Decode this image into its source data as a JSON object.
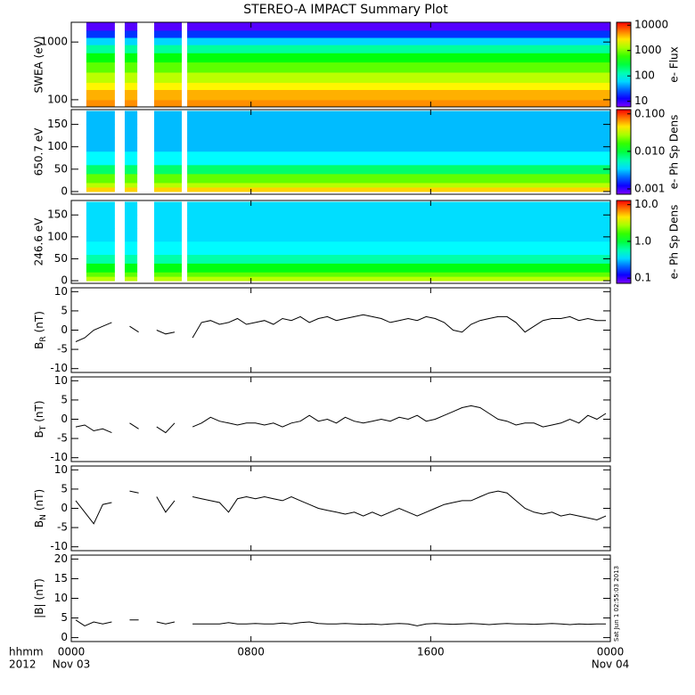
{
  "title": "STEREO-A IMPACT Summary Plot",
  "timestamp": "Sat Jun 1 02:55:03 2013",
  "xaxis": {
    "xlim": [
      0,
      24
    ],
    "xticks": [
      {
        "value": 0,
        "label": "0000"
      },
      {
        "value": 8,
        "label": "0800"
      },
      {
        "value": 16,
        "label": "1600"
      },
      {
        "value": 24,
        "label": "0000"
      }
    ],
    "date_labels": [
      {
        "value": 0,
        "label": "Nov 03"
      },
      {
        "value": 24,
        "label": "Nov 04"
      }
    ],
    "corner_labels": [
      "hhmm",
      "2012"
    ]
  },
  "chart_data": [
    {
      "type": "spectrogram",
      "ylabel": "SWEA (eV)",
      "ylog": true,
      "ylim": [
        75,
        2200
      ],
      "yticks": [
        100,
        1000
      ],
      "segments": [
        [
          0.67,
          1.94
        ],
        [
          2.38,
          2.94
        ],
        [
          3.69,
          4.92
        ],
        [
          5.16,
          24
        ]
      ],
      "y_edges": [
        75,
        100,
        150,
        200,
        300,
        450,
        650,
        900,
        1200,
        1600,
        2200
      ],
      "z": [
        5000,
        4000,
        2500,
        1500,
        800,
        400,
        150,
        60,
        20,
        8
      ],
      "zlabel": "e- Flux",
      "zlog": true,
      "zlim": [
        6,
        13000
      ],
      "zticks": [
        10,
        100,
        1000,
        10000
      ]
    },
    {
      "type": "spectrogram",
      "ylabel": "650.7 eV",
      "ylog": false,
      "ylim": [
        -6,
        183
      ],
      "yticks": [
        0,
        50,
        100,
        150
      ],
      "segments": [
        [
          0.67,
          1.94
        ],
        [
          2.38,
          2.94
        ],
        [
          3.69,
          4.92
        ],
        [
          5.16,
          24
        ]
      ],
      "y_edges": [
        0,
        10,
        20,
        40,
        60,
        90,
        120,
        150,
        180
      ],
      "z": [
        0.05,
        0.03,
        0.02,
        0.008,
        0.004,
        0.003,
        0.003,
        0.003
      ],
      "zlabel": "e- Ph Sp Dens",
      "zlog": true,
      "zlim": [
        0.00072,
        0.13
      ],
      "zticks": [
        {
          "value": 0.001,
          "label": "0.001"
        },
        {
          "value": 0.01,
          "label": "0.010"
        },
        {
          "value": 0.1,
          "label": "0.100"
        }
      ]
    },
    {
      "type": "spectrogram",
      "ylabel": "246.6 eV",
      "ylog": false,
      "ylim": [
        -6,
        183
      ],
      "yticks": [
        0,
        50,
        100,
        150
      ],
      "segments": [
        [
          0.67,
          1.94
        ],
        [
          2.38,
          2.94
        ],
        [
          3.69,
          4.92
        ],
        [
          5.16,
          24
        ]
      ],
      "y_edges": [
        0,
        10,
        20,
        40,
        60,
        90,
        120,
        150,
        180
      ],
      "z": [
        3,
        2,
        1.2,
        0.6,
        0.4,
        0.35,
        0.35,
        0.35
      ],
      "zlabel": "e- Ph Sp Dens",
      "zlog": true,
      "zlim": [
        0.072,
        13
      ],
      "zticks": [
        {
          "value": 0.1,
          "label": "0.1"
        },
        {
          "value": 1,
          "label": "1.0"
        },
        {
          "value": 10,
          "label": "10.0"
        }
      ]
    },
    {
      "type": "line",
      "ylabel": [
        "B",
        "R",
        "(nT)"
      ],
      "ylim": [
        -11,
        11
      ],
      "yticks": [
        -10,
        -5,
        0,
        5,
        10
      ],
      "color": "#000000",
      "x": [
        0.2,
        0.6,
        1.0,
        1.4,
        1.8,
        2.2,
        2.6,
        3.0,
        3.4,
        3.8,
        4.2,
        4.6,
        5.0,
        5.4,
        5.8,
        6.2,
        6.6,
        7.0,
        7.4,
        7.8,
        8.2,
        8.6,
        9.0,
        9.4,
        9.8,
        10.2,
        10.6,
        11.0,
        11.4,
        11.8,
        12.2,
        12.6,
        13.0,
        13.4,
        13.8,
        14.2,
        14.6,
        15.0,
        15.4,
        15.8,
        16.2,
        16.6,
        17.0,
        17.4,
        17.8,
        18.2,
        18.6,
        19.0,
        19.4,
        19.8,
        20.2,
        20.6,
        21.0,
        21.4,
        21.8,
        22.2,
        22.6,
        23.0,
        23.4,
        23.8
      ],
      "values": [
        -3,
        -2,
        0,
        1,
        2,
        null,
        1,
        -0.5,
        null,
        0,
        -1,
        -0.5,
        null,
        -2,
        2,
        2.5,
        1.5,
        2,
        3,
        1.5,
        2,
        2.5,
        1.5,
        3,
        2.5,
        3.5,
        2,
        3,
        3.5,
        2.5,
        3,
        3.5,
        4,
        3.5,
        3,
        2,
        2.5,
        3,
        2.5,
        3.5,
        3,
        2,
        0,
        -0.5,
        1.5,
        2.5,
        3,
        3.5,
        3.5,
        2,
        -0.5,
        1,
        2.5,
        3,
        3,
        3.5,
        2.5,
        3,
        2.5,
        2.5
      ]
    },
    {
      "type": "line",
      "ylabel": [
        "B",
        "T",
        "(nT)"
      ],
      "ylim": [
        -11,
        11
      ],
      "yticks": [
        -10,
        -5,
        0,
        5,
        10
      ],
      "color": "#000000",
      "x": [
        0.2,
        0.6,
        1.0,
        1.4,
        1.8,
        2.2,
        2.6,
        3.0,
        3.4,
        3.8,
        4.2,
        4.6,
        5.0,
        5.4,
        5.8,
        6.2,
        6.6,
        7.0,
        7.4,
        7.8,
        8.2,
        8.6,
        9.0,
        9.4,
        9.8,
        10.2,
        10.6,
        11.0,
        11.4,
        11.8,
        12.2,
        12.6,
        13.0,
        13.4,
        13.8,
        14.2,
        14.6,
        15.0,
        15.4,
        15.8,
        16.2,
        16.6,
        17.0,
        17.4,
        17.8,
        18.2,
        18.6,
        19.0,
        19.4,
        19.8,
        20.2,
        20.6,
        21.0,
        21.4,
        21.8,
        22.2,
        22.6,
        23.0,
        23.4,
        23.8
      ],
      "values": [
        -2,
        -1.5,
        -3,
        -2.5,
        -3.5,
        null,
        -1,
        -2.5,
        null,
        -2,
        -3.5,
        -1,
        null,
        -2,
        -1,
        0.5,
        -0.5,
        -1,
        -1.5,
        -1,
        -1,
        -1.5,
        -1,
        -2,
        -1,
        -0.5,
        1,
        -0.5,
        0,
        -1,
        0.5,
        -0.5,
        -1,
        -0.5,
        0,
        -0.5,
        0.5,
        0,
        1,
        -0.5,
        0,
        1,
        2,
        3,
        3.5,
        3,
        1.5,
        0,
        -0.5,
        -1.5,
        -1,
        -1,
        -2,
        -1.5,
        -1,
        0,
        -1,
        1,
        0,
        1.5
      ]
    },
    {
      "type": "line",
      "ylabel": [
        "B",
        "N",
        "(nT)"
      ],
      "ylim": [
        -11,
        11
      ],
      "yticks": [
        -10,
        -5,
        0,
        5,
        10
      ],
      "color": "#000000",
      "x": [
        0.2,
        0.6,
        1.0,
        1.4,
        1.8,
        2.2,
        2.6,
        3.0,
        3.4,
        3.8,
        4.2,
        4.6,
        5.0,
        5.4,
        5.8,
        6.2,
        6.6,
        7.0,
        7.4,
        7.8,
        8.2,
        8.6,
        9.0,
        9.4,
        9.8,
        10.2,
        10.6,
        11.0,
        11.4,
        11.8,
        12.2,
        12.6,
        13.0,
        13.4,
        13.8,
        14.2,
        14.6,
        15.0,
        15.4,
        15.8,
        16.2,
        16.6,
        17.0,
        17.4,
        17.8,
        18.2,
        18.6,
        19.0,
        19.4,
        19.8,
        20.2,
        20.6,
        21.0,
        21.4,
        21.8,
        22.2,
        22.6,
        23.0,
        23.4,
        23.8
      ],
      "values": [
        2,
        -1,
        -4,
        1,
        1.5,
        null,
        4.5,
        4,
        null,
        3,
        -1,
        2,
        null,
        3,
        2.5,
        2,
        1.5,
        -1,
        2.5,
        3,
        2.5,
        3,
        2.5,
        2,
        3,
        2,
        1,
        0,
        -0.5,
        -1,
        -1.5,
        -1,
        -2,
        -1,
        -2,
        -1,
        0,
        -1,
        -2,
        -1,
        0,
        1,
        1.5,
        2,
        2,
        3,
        4,
        4.5,
        4,
        2,
        0,
        -1,
        -1.5,
        -1,
        -2,
        -1.5,
        -2,
        -2.5,
        -3,
        -2
      ]
    },
    {
      "type": "line",
      "ylabel": [
        "|B|",
        "",
        "(nT)"
      ],
      "ylim": [
        -1,
        21
      ],
      "yticks": [
        0,
        5,
        10,
        15,
        20
      ],
      "color": "#000000",
      "x": [
        0.2,
        0.6,
        1.0,
        1.4,
        1.8,
        2.2,
        2.6,
        3.0,
        3.4,
        3.8,
        4.2,
        4.6,
        5.0,
        5.4,
        5.8,
        6.2,
        6.6,
        7.0,
        7.4,
        7.8,
        8.2,
        8.6,
        9.0,
        9.4,
        9.8,
        10.2,
        10.6,
        11.0,
        11.4,
        11.8,
        12.2,
        12.6,
        13.0,
        13.4,
        13.8,
        14.2,
        14.6,
        15.0,
        15.4,
        15.8,
        16.2,
        16.6,
        17.0,
        17.4,
        17.8,
        18.2,
        18.6,
        19.0,
        19.4,
        19.8,
        20.2,
        20.6,
        21.0,
        21.4,
        21.8,
        22.2,
        22.6,
        23.0,
        23.4,
        23.8
      ],
      "values": [
        4.5,
        3,
        4,
        3.5,
        4,
        null,
        4.5,
        4.5,
        null,
        4,
        3.5,
        4,
        null,
        3.5,
        3.5,
        3.5,
        3.5,
        3.8,
        3.5,
        3.5,
        3.6,
        3.5,
        3.5,
        3.7,
        3.5,
        3.8,
        4,
        3.6,
        3.5,
        3.5,
        3.6,
        3.5,
        3.4,
        3.5,
        3.3,
        3.5,
        3.6,
        3.5,
        3,
        3.5,
        3.6,
        3.5,
        3.4,
        3.5,
        3.6,
        3.5,
        3.3,
        3.5,
        3.6,
        3.5,
        3.5,
        3.4,
        3.5,
        3.6,
        3.5,
        3.3,
        3.5,
        3.4,
        3.5,
        3.5
      ]
    }
  ]
}
